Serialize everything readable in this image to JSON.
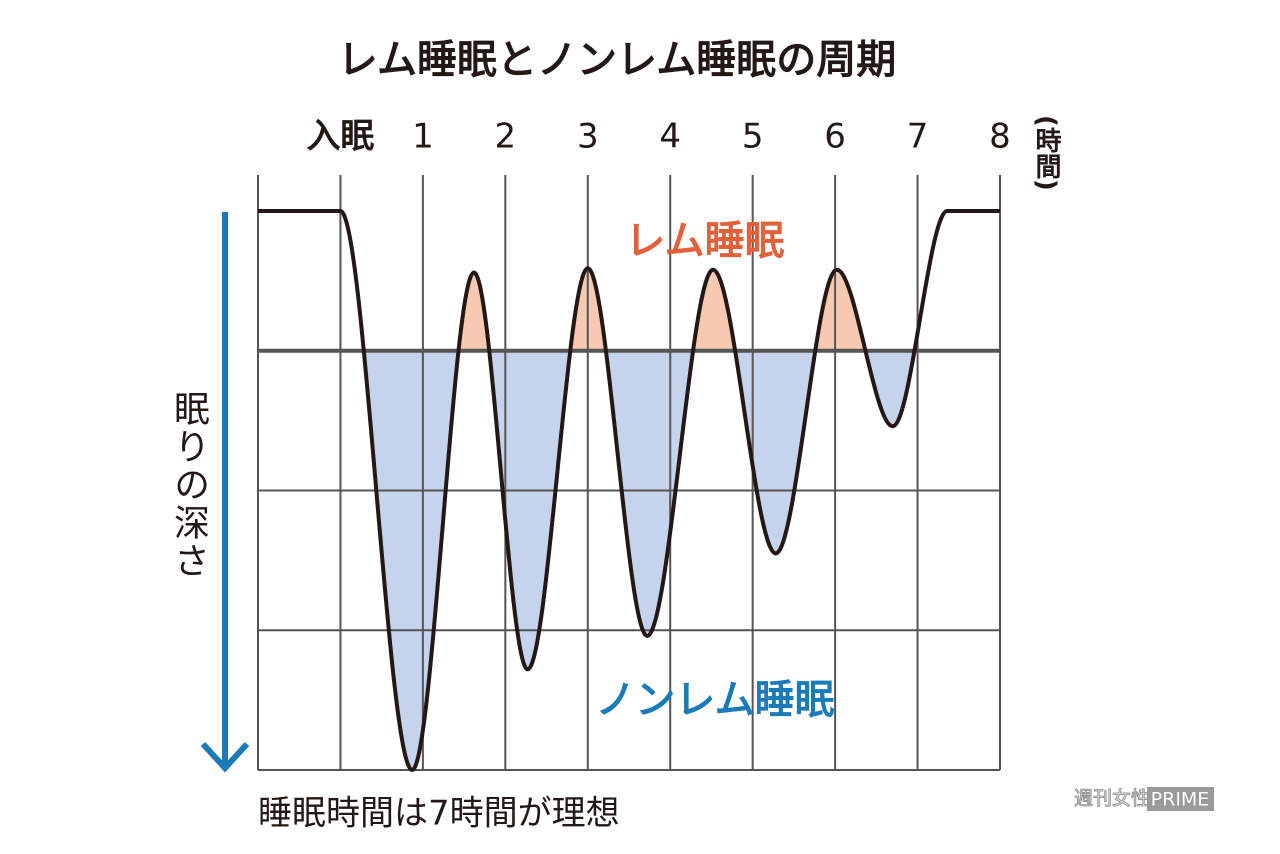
{
  "chart_data": {
    "type": "line",
    "title": "レム睡眠とノンレム睡眠の周期",
    "x_label": "(時間)",
    "y_label": "眠りの深さ",
    "x": [
      -1,
      0,
      0.87,
      1.62,
      2.27,
      3.0,
      3.72,
      4.52,
      5.28,
      6.02,
      6.7,
      7.36,
      8
    ],
    "values": [
      0,
      0,
      4,
      0.44,
      3.28,
      0.41,
      3.04,
      0.42,
      2.45,
      0.42,
      1.54,
      0,
      0
    ],
    "color": "#231815",
    "xlim": [
      -1,
      8
    ],
    "xticks": [
      {
        "value": 0,
        "label": "入眠"
      },
      1,
      2,
      3,
      4,
      5,
      6,
      7,
      8
    ],
    "ylim": [
      0,
      4
    ],
    "yticks": [
      1,
      2,
      3,
      4
    ],
    "y_inverted": true,
    "grid": true,
    "threshold": 1,
    "rem_fill": "#f6c9b0",
    "nonrem_fill": "#c5d3ec",
    "annotations": [
      {
        "text": "レム睡眠",
        "color": "#e2603a"
      },
      {
        "text": "ノンレム睡眠",
        "color": "#1b7bb9"
      }
    ],
    "caption": "睡眠時間は7時間が理想",
    "source": [
      "週刊女性",
      "PRIME"
    ]
  }
}
